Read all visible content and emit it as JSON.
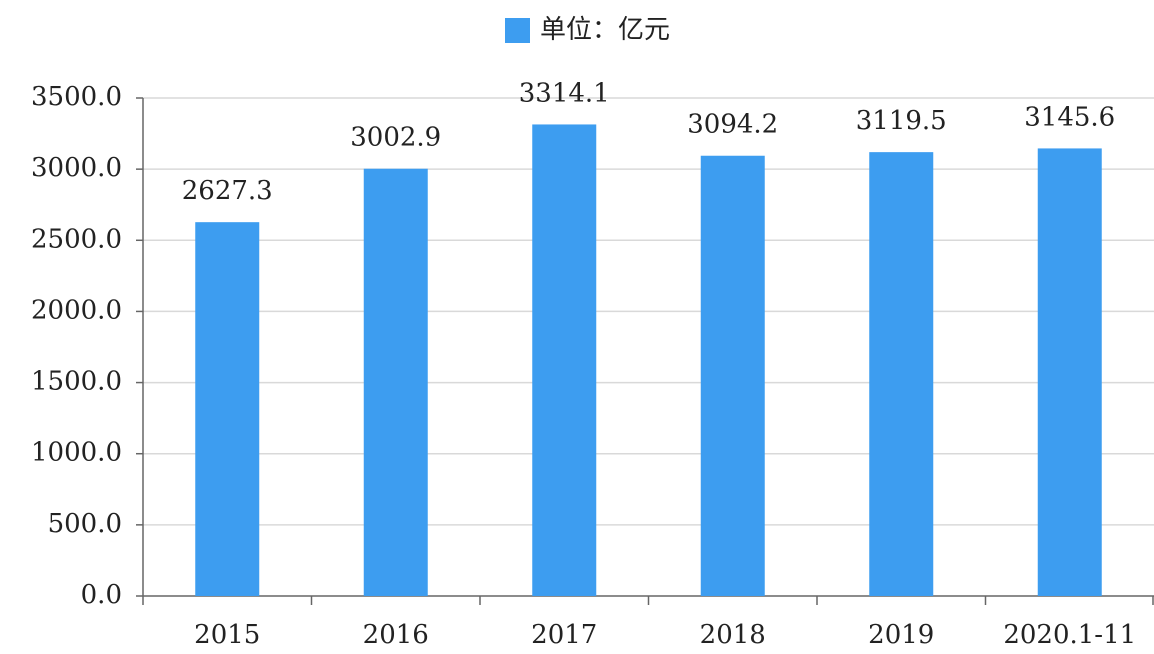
{
  "chart_data": {
    "type": "bar",
    "series": [
      {
        "name": "单位：亿元",
        "color": "#3d9df0",
        "values": [
          2627.3,
          3002.9,
          3314.1,
          3094.2,
          3119.5,
          3145.6
        ]
      }
    ],
    "categories": [
      "2015",
      "2016",
      "2017",
      "2018",
      "2019",
      "2020.1-11"
    ],
    "ylim": [
      0,
      3500
    ],
    "yticks": [
      {
        "value": 0,
        "label": "0.0"
      },
      {
        "value": 500,
        "label": "500.0"
      },
      {
        "value": 1000,
        "label": "1000.0"
      },
      {
        "value": 1500,
        "label": "1500.0"
      },
      {
        "value": 2000,
        "label": "2000.0"
      },
      {
        "value": 2500,
        "label": "2500.0"
      },
      {
        "value": 3000,
        "label": "3000.0"
      },
      {
        "value": 3500,
        "label": "3500.0"
      }
    ],
    "grid": true
  }
}
